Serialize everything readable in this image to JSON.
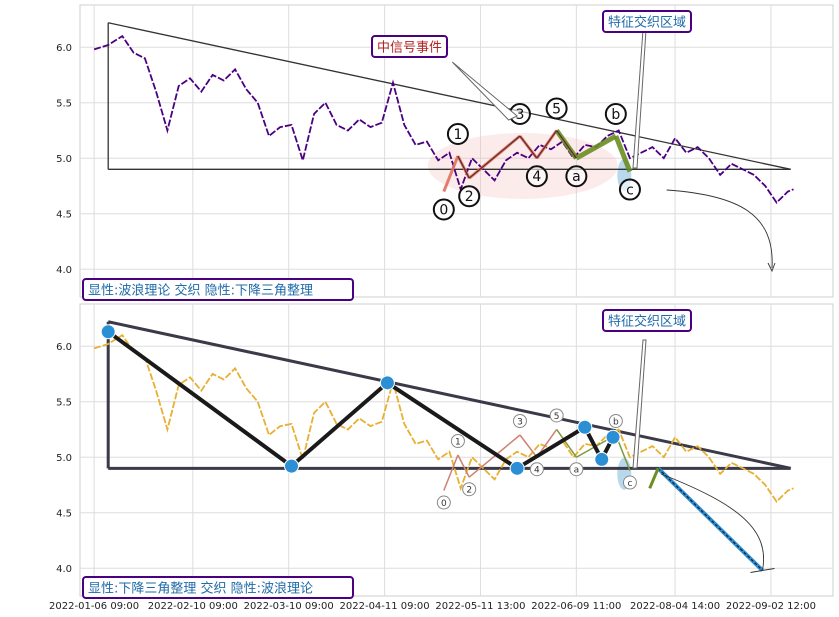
{
  "chart_data": [
    {
      "type": "line",
      "panel": "top",
      "ylim": [
        3.75,
        6.38
      ],
      "yticks": [
        4.0,
        4.5,
        5.0,
        5.5,
        6.0
      ],
      "price_color": "#4b0082",
      "series": [
        {
          "x": [
            0,
            5,
            10,
            14,
            18,
            22,
            26,
            30,
            34,
            38,
            42,
            46,
            50,
            54,
            58,
            62,
            66,
            70,
            74,
            78,
            82,
            86,
            90,
            94,
            98,
            102,
            106,
            110,
            114,
            118,
            122,
            126,
            130,
            134,
            138,
            142,
            146,
            150,
            154,
            158,
            162,
            166,
            170,
            174,
            178,
            182,
            186,
            190,
            194,
            198,
            202,
            206,
            210,
            214,
            218,
            222,
            226,
            230,
            234,
            238,
            242,
            246,
            248
          ],
          "values": [
            5.98,
            6.02,
            6.1,
            5.95,
            5.9,
            5.6,
            5.25,
            5.65,
            5.72,
            5.6,
            5.75,
            5.7,
            5.8,
            5.62,
            5.5,
            5.2,
            5.28,
            5.3,
            4.98,
            5.4,
            5.5,
            5.3,
            5.25,
            5.35,
            5.28,
            5.32,
            5.68,
            5.3,
            5.12,
            5.15,
            4.98,
            5.05,
            4.72,
            5.0,
            4.9,
            4.8,
            4.98,
            5.05,
            5.0,
            5.12,
            5.08,
            5.15,
            5.0,
            5.12,
            5.1,
            5.2,
            5.25,
            5.0,
            5.05,
            5.1,
            5.0,
            5.18,
            5.05,
            5.1,
            5.0,
            4.85,
            4.95,
            4.9,
            4.85,
            4.75,
            4.6,
            4.7,
            4.72
          ]
        }
      ],
      "triangle": {
        "upper": [
          [
            5,
            6.22
          ],
          [
            247,
            4.9
          ]
        ],
        "lower": [
          [
            5,
            4.9
          ],
          [
            247,
            4.9
          ]
        ],
        "left_edge_x": 5
      },
      "wave_points": [
        {
          "label": "0",
          "x": 124,
          "y": 4.7
        },
        {
          "label": "1",
          "x": 129,
          "y": 5.02
        },
        {
          "label": "2",
          "x": 133,
          "y": 4.82
        },
        {
          "label": "3",
          "x": 151,
          "y": 5.2
        },
        {
          "label": "4",
          "x": 157,
          "y": 5.0
        },
        {
          "label": "5",
          "x": 164,
          "y": 5.25
        },
        {
          "label": "a",
          "x": 171,
          "y": 5.0
        },
        {
          "label": "b",
          "x": 185,
          "y": 5.2
        },
        {
          "label": "c",
          "x": 190,
          "y": 4.88
        }
      ],
      "annotations": {
        "event_label": "中信号事件",
        "zone_label": "特征交织区域",
        "caption": "显性:波浪理论 交织 隐性:下降三角整理"
      }
    },
    {
      "type": "line",
      "panel": "bottom",
      "ylim": [
        3.75,
        6.38
      ],
      "yticks": [
        4.0,
        4.5,
        5.0,
        5.5,
        6.0
      ],
      "price_color": "#e8b030",
      "zigzag": [
        [
          5,
          6.13
        ],
        [
          70,
          4.92
        ],
        [
          104,
          5.67
        ],
        [
          150,
          4.9
        ],
        [
          174,
          5.27
        ],
        [
          180,
          4.98
        ],
        [
          184,
          5.18
        ]
      ],
      "triangle": {
        "upper": [
          [
            5,
            6.22
          ],
          [
            247,
            4.9
          ]
        ],
        "lower": [
          [
            5,
            4.9
          ],
          [
            247,
            4.9
          ]
        ]
      },
      "projection": [
        [
          200,
          4.9
        ],
        [
          237,
          3.98
        ]
      ],
      "annotations": {
        "zone_label": "特征交织区域",
        "caption": "显性:下降三角整理 交织 隐性:波浪理论"
      }
    }
  ],
  "xticks": [
    {
      "label": "2022-01-06 09:00",
      "x": 0
    },
    {
      "label": "2022-02-10 09:00",
      "x": 35
    },
    {
      "label": "2022-03-10 09:00",
      "x": 69
    },
    {
      "label": "2022-04-11 09:00",
      "x": 103
    },
    {
      "label": "2022-05-11 13:00",
      "x": 137
    },
    {
      "label": "2022-06-09 11:00",
      "x": 171
    },
    {
      "label": "2022-08-04 14:00",
      "x": 206
    },
    {
      "label": "2022-09-02 12:00",
      "x": 240
    }
  ],
  "xrange": [
    -5,
    262
  ]
}
